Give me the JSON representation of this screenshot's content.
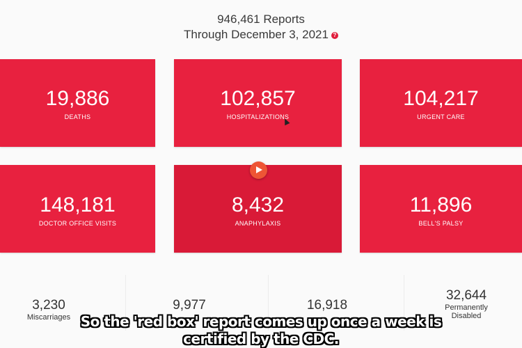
{
  "header": {
    "reports": "946,461 Reports",
    "through": "Through December 3, 2021",
    "help_icon": "?"
  },
  "boxes": [
    {
      "value": "19,886",
      "label": "DEATHS"
    },
    {
      "value": "102,857",
      "label": "HOSPITALIZATIONS"
    },
    {
      "value": "104,217",
      "label": "URGENT CARE"
    },
    {
      "value": "148,181",
      "label": "DOCTOR OFFICE VISITS"
    },
    {
      "value": "8,432",
      "label": "ANAPHYLAXIS"
    },
    {
      "value": "11,896",
      "label": "BELL'S PALSY"
    }
  ],
  "stats": [
    {
      "value": "3,230",
      "label": "Miscarriages"
    },
    {
      "value": "9,977",
      "label": ""
    },
    {
      "value": "16,918",
      "label": ""
    },
    {
      "value": "32,644",
      "label": "Permanently",
      "label2": "Disabled"
    }
  ],
  "caption": {
    "line1": "So the 'red box' report comes up once a week is",
    "line2": "certified by the CDC."
  },
  "colors": {
    "box_red": "#e8213f",
    "play_orange": "#ee5535"
  },
  "icons": [
    "help-icon",
    "play-icon",
    "cursor-icon"
  ]
}
